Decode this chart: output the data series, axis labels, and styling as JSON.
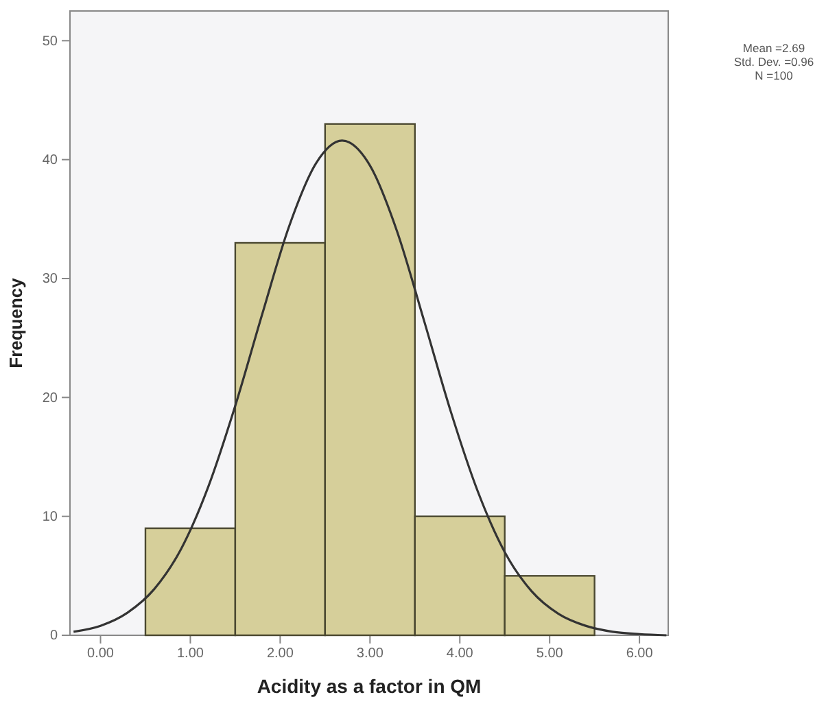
{
  "chart_data": {
    "type": "histogram",
    "xlabel": "Acidity as a factor  in QM",
    "ylabel": "Frequency",
    "xlim": [
      -0.34,
      6.32
    ],
    "ylim": [
      0,
      52.5
    ],
    "xticks": [
      {
        "value": 0,
        "label": "0.00"
      },
      {
        "value": 1,
        "label": "1.00"
      },
      {
        "value": 2,
        "label": "2.00"
      },
      {
        "value": 3,
        "label": "3.00"
      },
      {
        "value": 4,
        "label": "4.00"
      },
      {
        "value": 5,
        "label": "5.00"
      },
      {
        "value": 6,
        "label": "6.00"
      }
    ],
    "yticks": [
      0,
      10,
      20,
      30,
      40,
      50
    ],
    "series": [
      {
        "bins": [
          0.5,
          1.5,
          2.5,
          3.5,
          4.5,
          5.5
        ],
        "values": [
          9,
          33,
          43,
          10,
          5
        ],
        "color": "#d6cf9a"
      },
      {
        "type": "line",
        "color": "#333333",
        "x": [
          -0.3,
          0,
          0.3,
          0.6,
          0.9,
          1.2,
          1.5,
          1.8,
          2.1,
          2.4,
          2.69,
          3.0,
          3.3,
          3.6,
          3.9,
          4.2,
          4.5,
          4.8,
          5.1,
          5.4,
          5.7,
          6.0,
          6.3
        ],
        "values": [
          0.3,
          0.8,
          1.9,
          3.9,
          7.3,
          12.5,
          19.3,
          27.0,
          34.4,
          39.7,
          41.6,
          39.5,
          34.0,
          26.5,
          18.8,
          12.1,
          7.0,
          3.7,
          1.8,
          0.8,
          0.3,
          0.1,
          0.0
        ]
      }
    ],
    "annotations": [
      "Mean =2.69",
      "Std. Dev. =0.96",
      "N =100"
    ]
  }
}
